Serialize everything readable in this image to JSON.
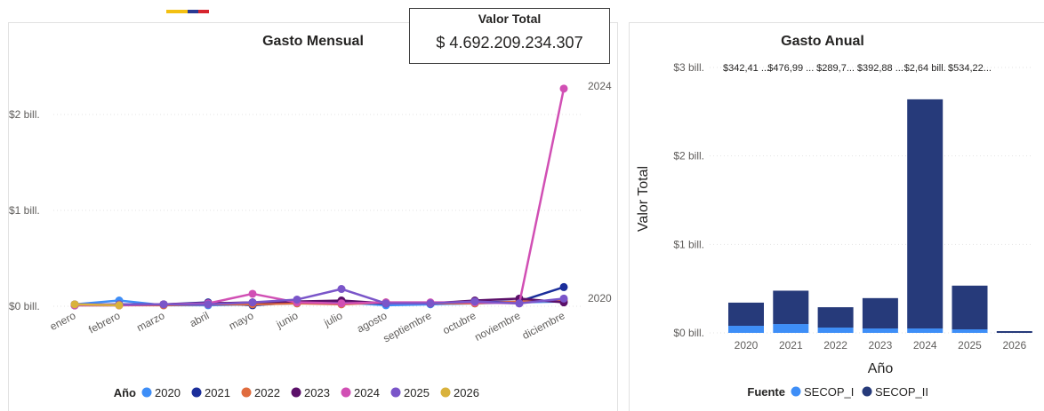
{
  "header": {
    "flag_colors": [
      "#f3c012",
      "#2a3a93",
      "#d6242e"
    ]
  },
  "kpi_card": {
    "label": "Valor Total",
    "value": "$ 4.692.209.234.307"
  },
  "chart_data": [
    {
      "type": "line",
      "title": "Gasto Mensual",
      "categories": [
        "enero",
        "febrero",
        "marzo",
        "abril",
        "mayo",
        "junio",
        "julio",
        "agosto",
        "septiembre",
        "octubre",
        "noviembre",
        "diciembre"
      ],
      "y_ticks": [
        "$0 bill.",
        "$1 bill.",
        "$2 bill."
      ],
      "ylim": [
        0,
        2.35
      ],
      "grid": true,
      "legend_title": "Año",
      "legend_position": "bottom",
      "end_labels": [
        "2024",
        "2020"
      ],
      "series": [
        {
          "name": "2020",
          "color": "#3e8ef7",
          "values": [
            0.02,
            0.06,
            0.01,
            0.01,
            0.02,
            0.03,
            0.04,
            0.01,
            0.02,
            0.03,
            0.04,
            0.05
          ]
        },
        {
          "name": "2021",
          "color": "#1b2e9b",
          "values": [
            0.01,
            0.01,
            0.02,
            0.04,
            0.01,
            0.04,
            0.04,
            0.03,
            0.03,
            0.04,
            0.05,
            0.2
          ]
        },
        {
          "name": "2022",
          "color": "#e06c3e",
          "values": [
            0.01,
            0.01,
            0.01,
            0.02,
            0.02,
            0.03,
            0.02,
            0.04,
            0.03,
            0.03,
            0.05,
            0.06
          ]
        },
        {
          "name": "2023",
          "color": "#5b1069",
          "values": [
            0.01,
            0.02,
            0.02,
            0.03,
            0.04,
            0.05,
            0.06,
            0.03,
            0.03,
            0.06,
            0.08,
            0.04
          ]
        },
        {
          "name": "2024",
          "color": "#d14fb4",
          "values": [
            0.01,
            0.01,
            0.02,
            0.03,
            0.13,
            0.04,
            0.03,
            0.04,
            0.04,
            0.04,
            0.03,
            2.27
          ]
        },
        {
          "name": "2025",
          "color": "#7a55c9",
          "values": [
            0.02,
            0.02,
            0.02,
            0.02,
            0.04,
            0.07,
            0.18,
            0.03,
            0.03,
            0.05,
            0.03,
            0.08
          ]
        },
        {
          "name": "2026",
          "color": "#d9b23c",
          "values": [
            0.02,
            0.01,
            null,
            null,
            null,
            null,
            null,
            null,
            null,
            null,
            null,
            null
          ]
        }
      ]
    },
    {
      "type": "bar",
      "stacked": true,
      "title": "Gasto Anual",
      "xlabel": "Año",
      "ylabel": "Valor Total",
      "categories": [
        "2020",
        "2021",
        "2022",
        "2023",
        "2024",
        "2025",
        "2026"
      ],
      "y_ticks": [
        "$0 bill.",
        "$1 bill.",
        "$2 bill.",
        "$3 bill."
      ],
      "ylim": [
        0,
        3
      ],
      "grid": true,
      "legend_title": "Fuente",
      "legend_position": "bottom",
      "total_labels": [
        "$342,41 ...",
        "$476,99 ...",
        "$289,7...",
        "$392,88 ...",
        "$2,64 bill.",
        "$534,22..."
      ],
      "series": [
        {
          "name": "SECOP_I",
          "color": "#3e8ef7",
          "values": [
            0.08,
            0.1,
            0.06,
            0.05,
            0.05,
            0.04,
            0.0
          ]
        },
        {
          "name": "SECOP_II",
          "color": "#263a7a",
          "values": [
            0.262,
            0.377,
            0.23,
            0.343,
            2.59,
            0.494,
            0.02
          ]
        }
      ]
    }
  ]
}
